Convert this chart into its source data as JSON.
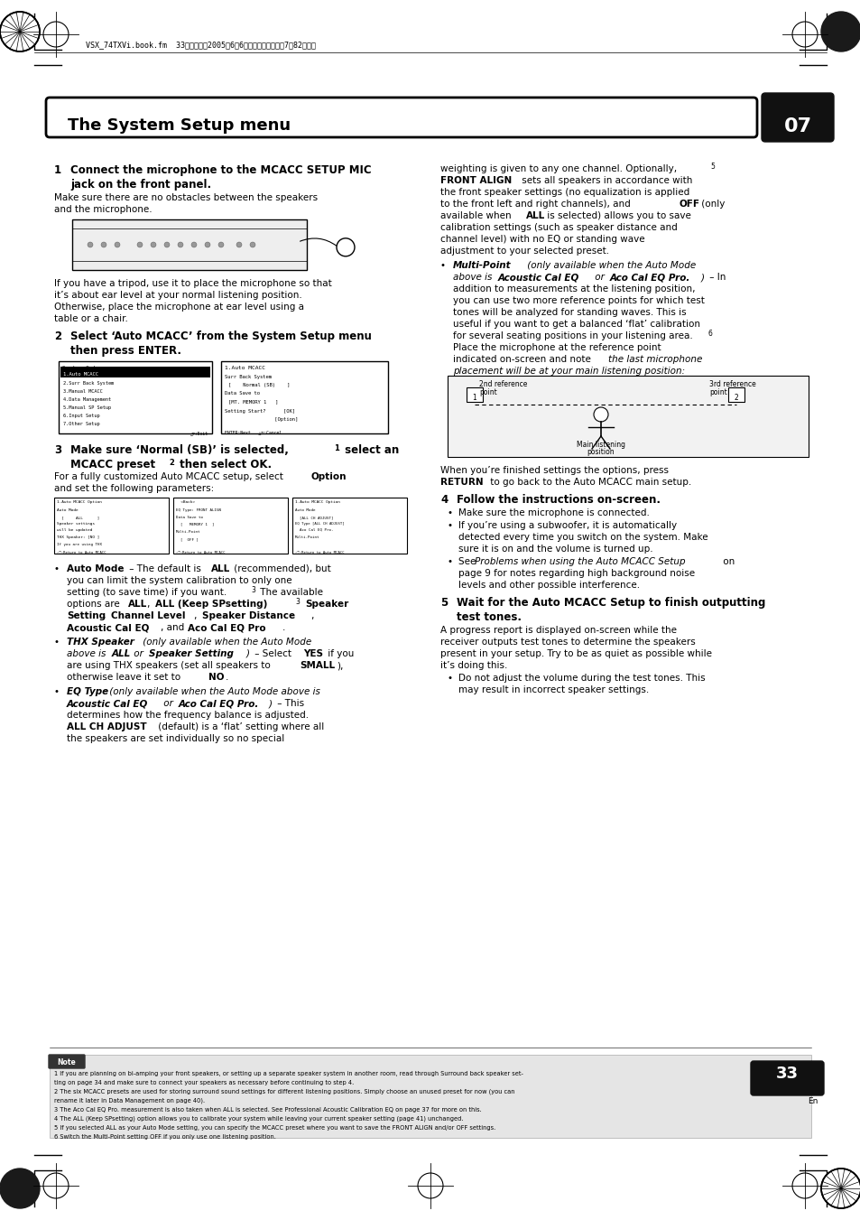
{
  "page_num": "33",
  "page_label": "En",
  "chapter_num": "07",
  "chapter_title": "The System Setup menu",
  "header_text": "VSX_74TXVi.book.fm  33ページ・・2005年6月6日・・月曜日・午後7晈82分・分",
  "bg_color": "#ffffff",
  "text_color": "#000000",
  "col2_para1_line0": "weighting is given to any one channel. Optionally,⁵",
  "col2_para1_line1a": "FRONT ALIGN",
  "col2_para1_line1b": " sets all speakers in accordance with",
  "col2_para1_line2": "the front speaker settings (no equalization is applied",
  "col2_para1_line3a": "to the front left and right channels), and ",
  "col2_para1_line3b": "OFF",
  "col2_para1_line3c": " (only",
  "col2_para1_line4": "available when ",
  "col2_para1_line4b": "ALL",
  "col2_para1_line4c": " is selected) allows you to save",
  "col2_para1_line5": "calibration settings (such as speaker distance and",
  "col2_para1_line6": "channel level) with no EQ or standing wave",
  "col2_para1_line7": "adjustment to your selected preset.",
  "note_lines": [
    "1 If you are planning on bi-amping your front speakers, or setting up a separate speaker system in another room, read through Surround back speaker set-",
    "ting on page 34 and make sure to connect your speakers as necessary before continuing to step 4.",
    "2 The six MCACC presets are used for storing surround sound settings for different listening positions. Simply choose an unused preset for now (you can",
    "rename it later in Data Management on page 40).",
    "3 The Aco Cal EQ Pro. measurement is also taken when ALL is selected. See Professional Acoustic Calibration EQ on page 37 for more on this.",
    "4 The ALL (Keep SPsetting) option allows you to calibrate your system while leaving your current speaker setting (page 41) unchanged.",
    "5 If you selected ALL as your Auto Mode setting, you can specify the MCACC preset where you want to save the FRONT ALIGN and/or OFF settings.",
    "6 Switch the Multi-Point setting OFF if you only use one listening position."
  ]
}
